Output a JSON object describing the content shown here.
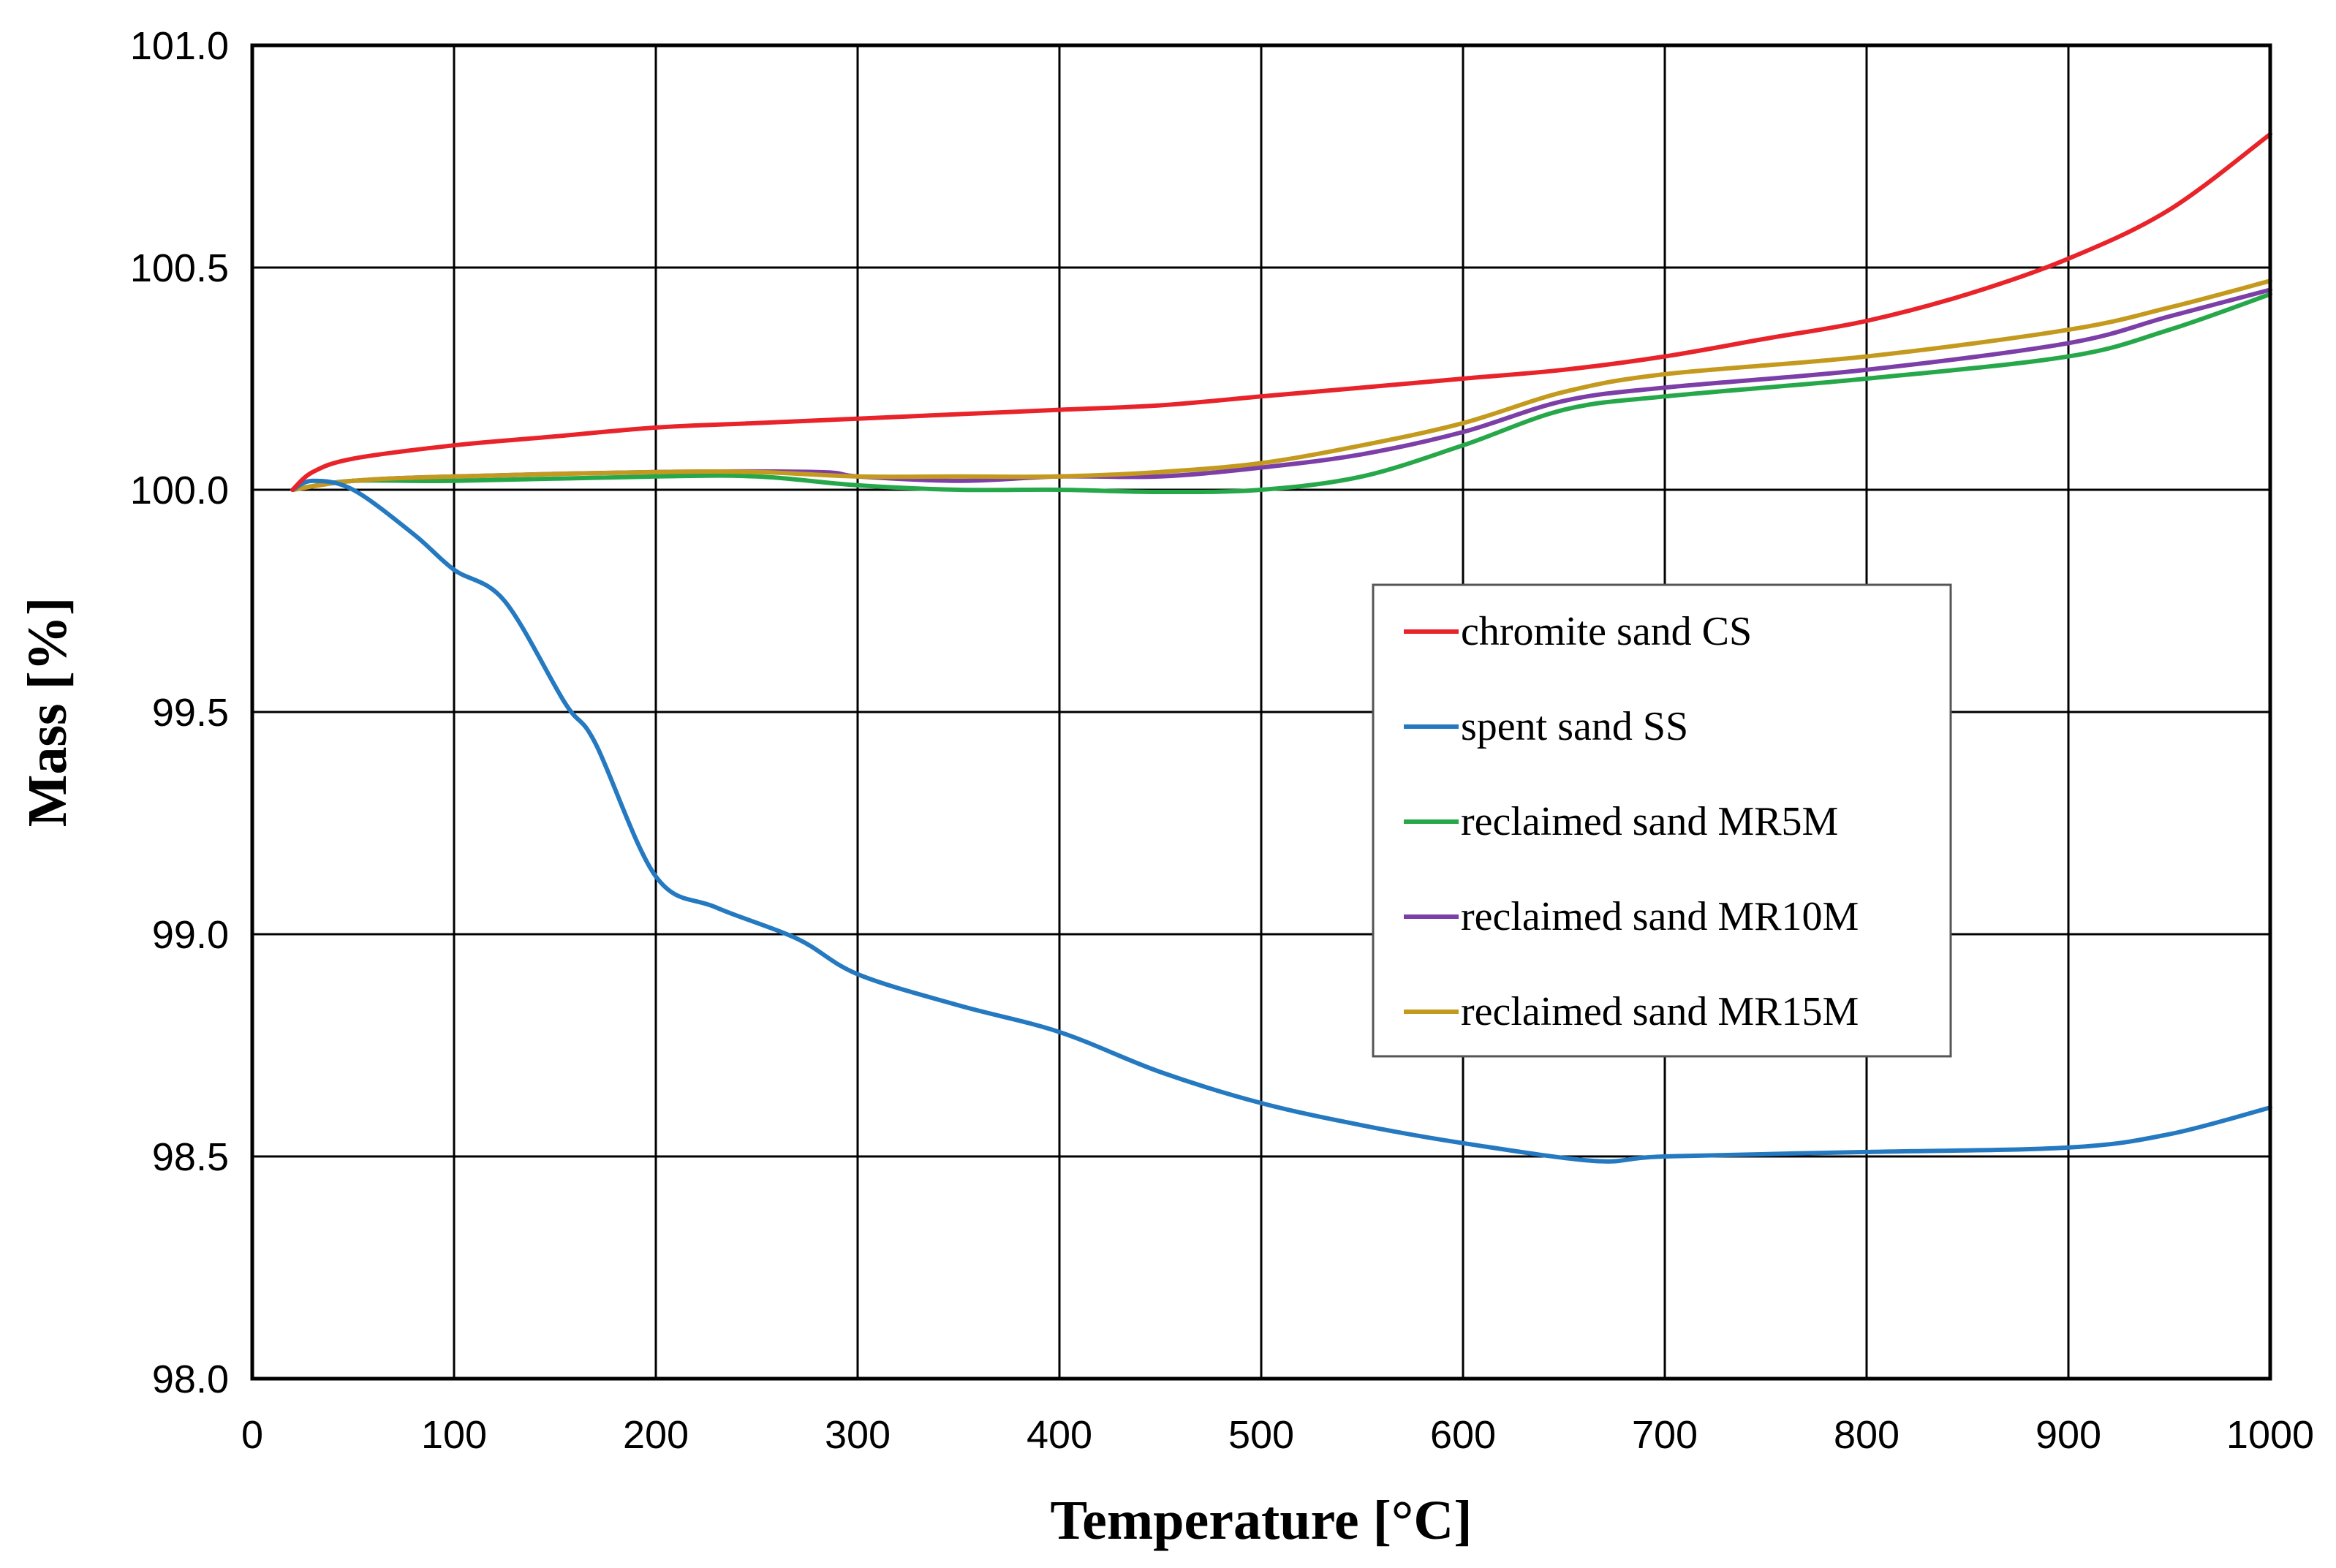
{
  "chart_data": {
    "type": "line",
    "title": "",
    "xlabel": "Temperature [°C]",
    "ylabel": "Mass [%]",
    "xlim": [
      0,
      1000
    ],
    "ylim": [
      98.0,
      101.0
    ],
    "grid": true,
    "legend_position": "center-right",
    "x_ticks": [
      "0",
      "100",
      "200",
      "300",
      "400",
      "500",
      "600",
      "700",
      "800",
      "900",
      "1000"
    ],
    "y_ticks": [
      "98.0",
      "98.5",
      "99.0",
      "99.5",
      "100.0",
      "100.5",
      "101.0"
    ],
    "series": [
      {
        "name": "chromite sand CS",
        "color": "#e8232a",
        "x": [
          20,
          30,
          50,
          100,
          150,
          200,
          250,
          300,
          350,
          400,
          450,
          500,
          550,
          600,
          650,
          700,
          750,
          800,
          850,
          900,
          950,
          1000
        ],
        "y": [
          100.0,
          100.04,
          100.07,
          100.1,
          100.12,
          100.14,
          100.15,
          100.16,
          100.17,
          100.18,
          100.19,
          100.21,
          100.23,
          100.25,
          100.27,
          100.3,
          100.34,
          100.38,
          100.44,
          100.52,
          100.63,
          100.8
        ]
      },
      {
        "name": "spent sand SS",
        "color": "#2479c0",
        "x": [
          20,
          30,
          50,
          80,
          100,
          125,
          155,
          170,
          200,
          230,
          270,
          300,
          350,
          400,
          450,
          500,
          550,
          600,
          665,
          700,
          800,
          900,
          950,
          1000
        ],
        "y": [
          100.0,
          100.02,
          100.0,
          99.9,
          99.82,
          99.75,
          99.52,
          99.43,
          99.13,
          99.06,
          98.99,
          98.91,
          98.84,
          98.78,
          98.69,
          98.62,
          98.57,
          98.53,
          98.49,
          98.5,
          98.51,
          98.52,
          98.55,
          98.61
        ]
      },
      {
        "name": "reclaimed sand MR5M",
        "color": "#26a84a",
        "x": [
          20,
          50,
          100,
          200,
          250,
          300,
          350,
          400,
          450,
          500,
          550,
          600,
          650,
          700,
          800,
          900,
          950,
          1000
        ],
        "y": [
          100.0,
          100.02,
          100.02,
          100.03,
          100.03,
          100.01,
          100.0,
          100.0,
          99.995,
          100.0,
          100.03,
          100.1,
          100.18,
          100.21,
          100.25,
          100.3,
          100.36,
          100.44
        ]
      },
      {
        "name": "reclaimed sand MR10M",
        "color": "#7c3fa8",
        "x": [
          20,
          50,
          100,
          200,
          280,
          300,
          350,
          400,
          450,
          500,
          550,
          600,
          650,
          700,
          800,
          900,
          950,
          1000
        ],
        "y": [
          100.0,
          100.02,
          100.03,
          100.04,
          100.04,
          100.03,
          100.02,
          100.03,
          100.03,
          100.05,
          100.08,
          100.13,
          100.2,
          100.23,
          100.27,
          100.33,
          100.39,
          100.45
        ]
      },
      {
        "name": "reclaimed sand MR15M",
        "color": "#c49a1e",
        "x": [
          20,
          50,
          100,
          200,
          250,
          300,
          350,
          400,
          450,
          500,
          550,
          600,
          650,
          700,
          800,
          900,
          950,
          1000
        ],
        "y": [
          100.0,
          100.02,
          100.03,
          100.04,
          100.04,
          100.03,
          100.03,
          100.03,
          100.04,
          100.06,
          100.1,
          100.15,
          100.22,
          100.26,
          100.3,
          100.36,
          100.41,
          100.47
        ]
      }
    ]
  }
}
